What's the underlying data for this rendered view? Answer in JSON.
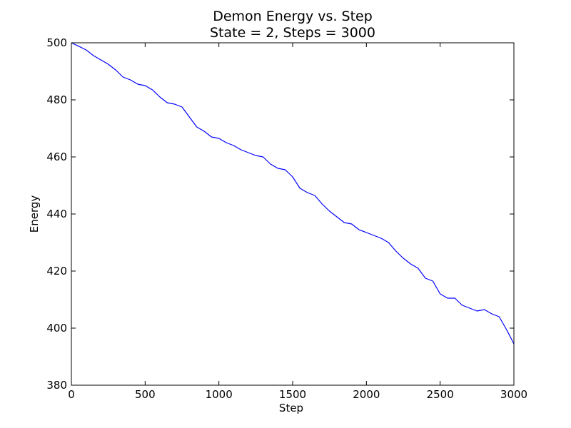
{
  "chart_data": {
    "type": "line",
    "title": "Demon Energy vs. Step",
    "subtitle": "State = 2, Steps = 3000",
    "xlabel": "Step",
    "ylabel": "Energy",
    "xlim": [
      0,
      3000
    ],
    "ylim": [
      380,
      500
    ],
    "xticks": [
      "0",
      "500",
      "1000",
      "1500",
      "2000",
      "2500",
      "3000"
    ],
    "yticks": [
      "380",
      "400",
      "420",
      "440",
      "460",
      "480",
      "500"
    ],
    "grid": false,
    "line_color": "#0000ff",
    "series": [
      {
        "x": [
          0,
          50,
          100,
          150,
          200,
          250,
          300,
          350,
          400,
          450,
          500,
          550,
          600,
          650,
          700,
          750,
          800,
          850,
          900,
          950,
          1000,
          1050,
          1100,
          1150,
          1200,
          1250,
          1300,
          1350,
          1400,
          1450,
          1500,
          1550,
          1600,
          1650,
          1700,
          1750,
          1800,
          1850,
          1900,
          1950,
          2000,
          2050,
          2100,
          2150,
          2200,
          2250,
          2300,
          2350,
          2400,
          2450,
          2500,
          2550,
          2600,
          2650,
          2700,
          2750,
          2800,
          2850,
          2900,
          2950,
          3000
        ],
        "values": [
          500.0,
          498.8,
          497.5,
          495.5,
          494.0,
          492.5,
          490.5,
          488.0,
          487.0,
          485.5,
          485.0,
          483.5,
          481.0,
          479.0,
          478.5,
          477.5,
          474.0,
          470.5,
          469.0,
          467.0,
          466.5,
          465.0,
          464.0,
          462.5,
          461.5,
          460.5,
          460.0,
          457.5,
          456.0,
          455.5,
          453.0,
          449.0,
          447.5,
          446.5,
          443.5,
          441.0,
          439.0,
          437.0,
          436.5,
          434.5,
          433.5,
          432.5,
          431.5,
          430.0,
          427.0,
          424.5,
          422.5,
          421.0,
          417.5,
          416.5,
          412.0,
          410.5,
          410.5,
          408.0,
          407.0,
          406.0,
          406.5,
          405.0,
          404.0,
          399.5,
          394.5
        ]
      }
    ]
  }
}
